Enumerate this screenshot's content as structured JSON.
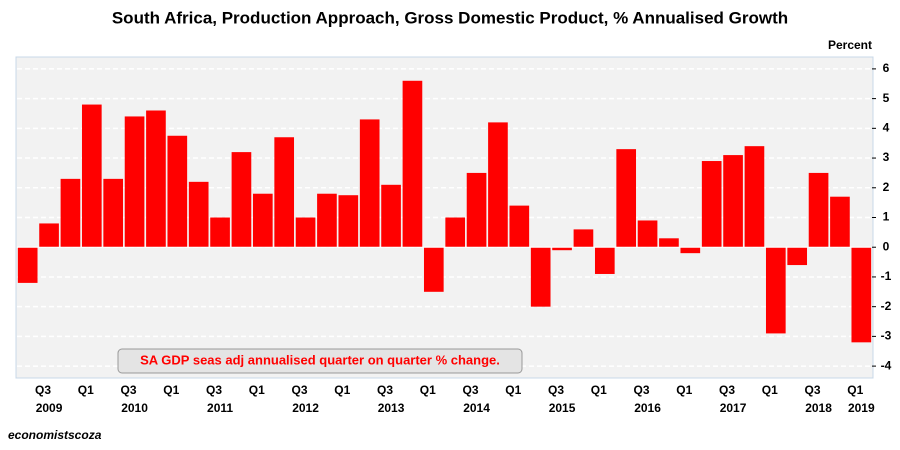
{
  "chart_data": {
    "type": "bar",
    "title": "South Africa, Production Approach, Gross Domestic Product, % Annualised Growth",
    "y_axis_label": "Percent",
    "annotation": "SA GDP seas adj annualised quarter on quarter % change.",
    "source": "economistscoza",
    "categories": [
      null,
      "Q3",
      null,
      "Q1",
      null,
      "Q3",
      null,
      "Q1",
      null,
      "Q3",
      null,
      "Q1",
      null,
      "Q3",
      null,
      "Q1",
      null,
      "Q3",
      null,
      "Q1",
      null,
      "Q3",
      null,
      "Q1",
      null,
      "Q3",
      null,
      "Q1",
      null,
      "Q3",
      null,
      "Q1",
      null,
      "Q3",
      null,
      "Q1",
      null,
      "Q3",
      null,
      "Q1"
    ],
    "year_labels": [
      null,
      "2009",
      null,
      null,
      null,
      "2010",
      null,
      null,
      null,
      "2011",
      null,
      null,
      null,
      "2012",
      null,
      null,
      null,
      "2013",
      null,
      null,
      null,
      "2014",
      null,
      null,
      null,
      "2015",
      null,
      null,
      null,
      "2016",
      null,
      null,
      null,
      "2017",
      null,
      null,
      null,
      "2018",
      null,
      "2019"
    ],
    "values": [
      -1.2,
      0.8,
      2.3,
      4.8,
      2.3,
      4.4,
      4.6,
      3.75,
      2.2,
      1.0,
      3.2,
      1.8,
      3.7,
      1.0,
      1.8,
      1.75,
      4.3,
      2.1,
      5.6,
      -1.5,
      1.0,
      2.5,
      4.2,
      1.4,
      -2.0,
      -0.1,
      0.6,
      -0.9,
      3.3,
      0.9,
      0.3,
      -0.2,
      2.9,
      3.1,
      3.4,
      -2.9,
      -0.6,
      2.5,
      1.7,
      -3.2
    ],
    "color": "#ff0000",
    "ylim": [
      -4.4,
      6.4
    ],
    "yticks": [
      -4,
      -3,
      -2,
      -1,
      0,
      1,
      2,
      3,
      4,
      5,
      6
    ],
    "grid": true
  }
}
